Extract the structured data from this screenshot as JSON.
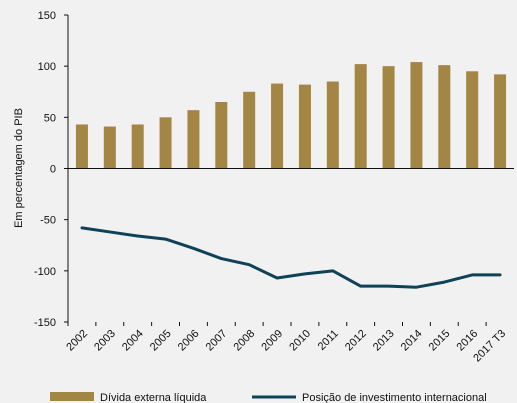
{
  "chart_data": {
    "type": "bar",
    "categories": [
      "2002",
      "2003",
      "2004",
      "2005",
      "2006",
      "2007",
      "2008",
      "2009",
      "2010",
      "2011",
      "2012",
      "2013",
      "2014",
      "2015",
      "2016",
      "2017 T3"
    ],
    "series": [
      {
        "name": "Dívida externa líquida",
        "type": "bar",
        "color": "#a38544",
        "values": [
          43,
          41,
          43,
          50,
          57,
          65,
          75,
          83,
          82,
          85,
          102,
          100,
          104,
          101,
          95,
          92
        ]
      },
      {
        "name": "Posição de investimento internacional",
        "type": "line",
        "color": "#0f4257",
        "values": [
          -58,
          -62,
          -66,
          -69,
          -78,
          -88,
          -94,
          -107,
          -103,
          -100,
          -115,
          -115,
          -116,
          -111,
          -104,
          -104
        ]
      }
    ],
    "ylabel": "Em percentagem do PIB",
    "xlabel": "",
    "ylim": [
      -150,
      150
    ],
    "yticks": [
      150,
      100,
      50,
      0,
      -50,
      -100,
      -150
    ],
    "legend_position": "bottom",
    "grid": false
  }
}
